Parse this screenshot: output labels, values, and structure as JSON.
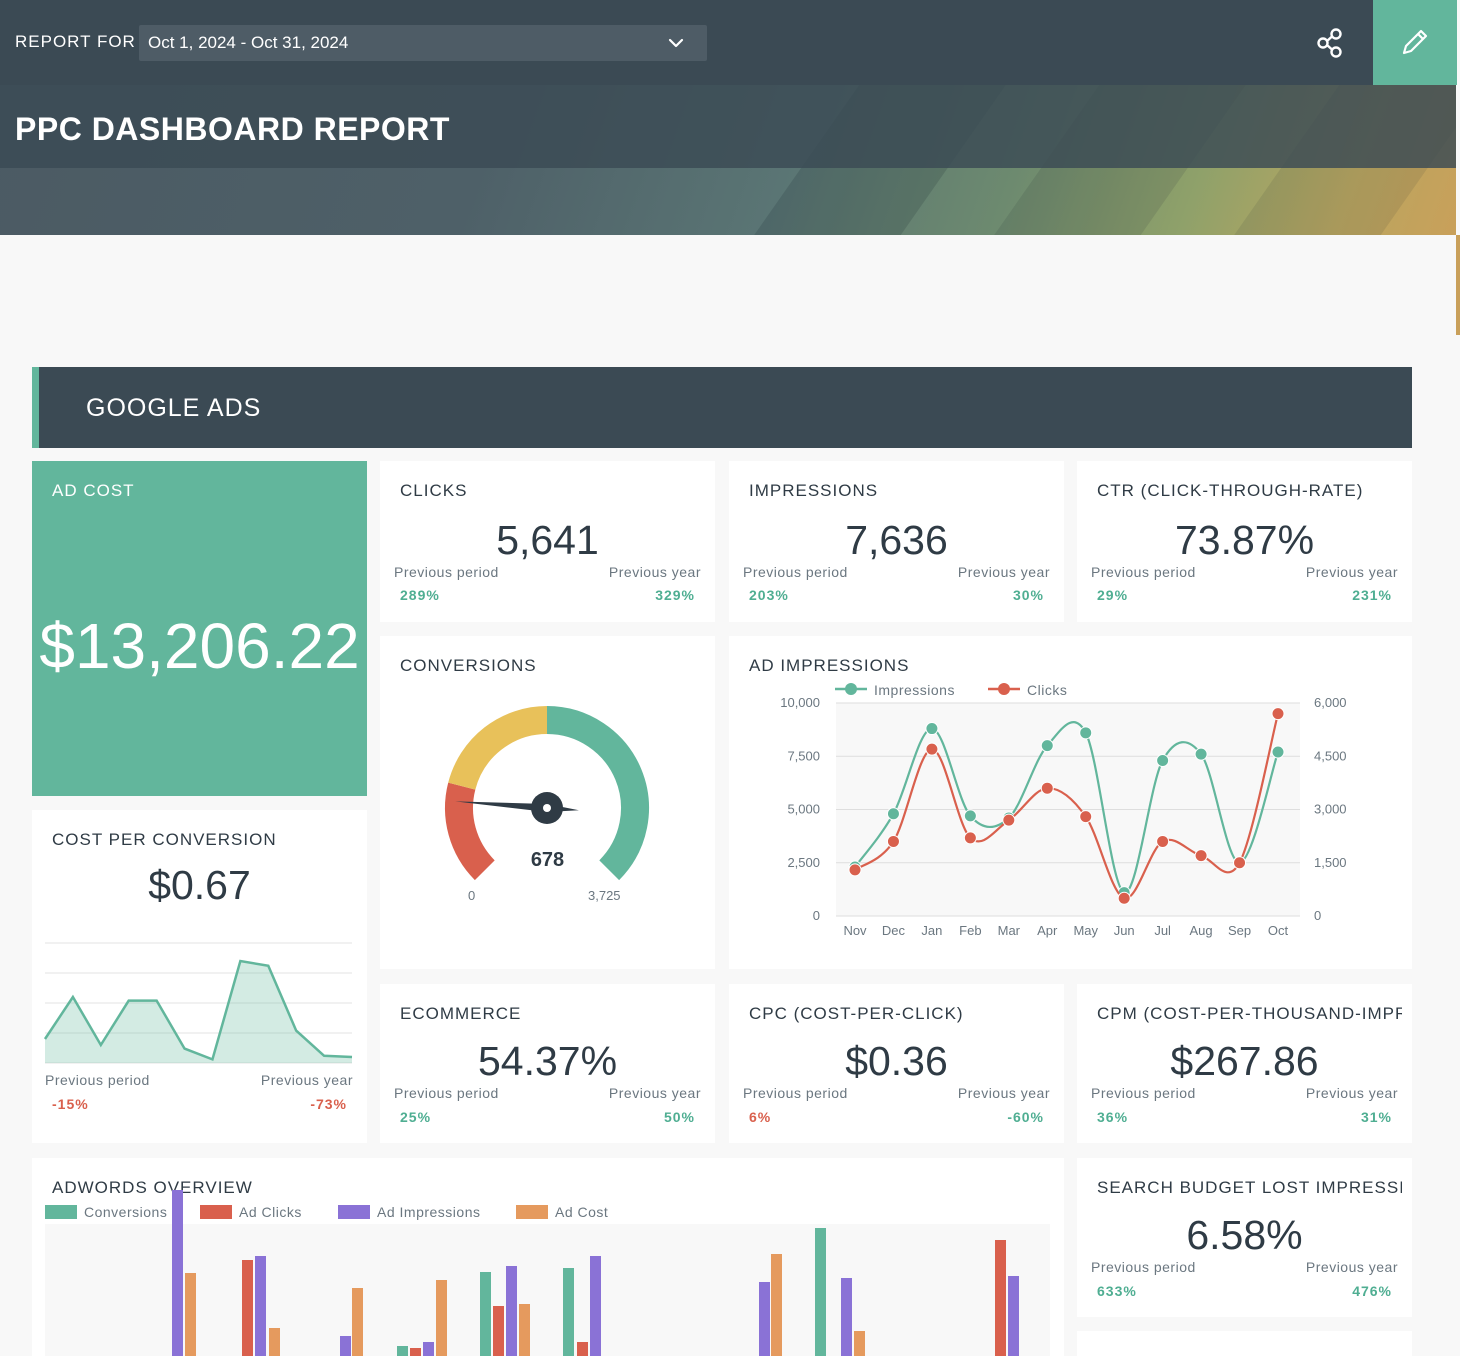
{
  "header": {
    "report_for_label": "REPORT FOR",
    "date_range": "Oct 1, 2024 - Oct 31, 2024",
    "title": "PPC DASHBOARD REPORT",
    "icons": [
      "chevron-down-icon",
      "share-icon",
      "pencil-icon"
    ]
  },
  "section": {
    "title": "GOOGLE ADS"
  },
  "colors": {
    "accent": "#62b69c",
    "dark": "#3b4a54",
    "positive": "#4fae92",
    "negative": "#d9604d",
    "purple": "#8a72d6",
    "orange": "#e59a5e",
    "yellow": "#e8c15a"
  },
  "cards": {
    "ad_cost": {
      "title": "AD COST",
      "value": "$13,206.22"
    },
    "clicks": {
      "title": "CLICKS",
      "value": "5,641",
      "prev_period_label": "Previous period",
      "prev_period": "289%",
      "prev_year_label": "Previous year",
      "prev_year": "329%"
    },
    "impressions": {
      "title": "IMPRESSIONS",
      "value": "7,636",
      "prev_period_label": "Previous period",
      "prev_period": "203%",
      "prev_year_label": "Previous year",
      "prev_year": "30%"
    },
    "ctr": {
      "title": "CTR (CLICK-THROUGH-RATE)",
      "value": "73.87%",
      "prev_period_label": "Previous period",
      "prev_period": "29%",
      "prev_year_label": "Previous year",
      "prev_year": "231%"
    },
    "conversions": {
      "title": "CONVERSIONS",
      "value": "678",
      "min": "0",
      "max": "3,725"
    },
    "cost_per_conversion": {
      "title": "COST PER CONVERSION",
      "value": "$0.67",
      "prev_period_label": "Previous period",
      "prev_period": "-15%",
      "prev_year_label": "Previous year",
      "prev_year": "-73%"
    },
    "ecommerce": {
      "title": "ECOMMERCE",
      "value": "54.37%",
      "prev_period_label": "Previous period",
      "prev_period": "25%",
      "prev_year_label": "Previous year",
      "prev_year": "50%"
    },
    "cpc": {
      "title": "CPC (COST-PER-CLICK)",
      "value": "$0.36",
      "prev_period_label": "Previous period",
      "prev_period": "6%",
      "prev_year_label": "Previous year",
      "prev_year": "-60%"
    },
    "cpm": {
      "title": "CPM (COST-PER-THOUSAND-IMPRI",
      "value": "$267.86",
      "prev_period_label": "Previous period",
      "prev_period": "36%",
      "prev_year_label": "Previous year",
      "prev_year": "31%"
    },
    "search_budget": {
      "title": "SEARCH BUDGET LOST IMPRESSIO",
      "value": "6.58%",
      "prev_period_label": "Previous period",
      "prev_period": "633%",
      "prev_year_label": "Previous year",
      "prev_year": "476%"
    },
    "ad_impressions": {
      "title": "AD IMPRESSIONS"
    },
    "adwords_overview": {
      "title": "ADWORDS OVERVIEW"
    }
  },
  "chart_data": [
    {
      "type": "gauge",
      "name": "conversions",
      "value": 678,
      "min": 0,
      "max": 3725
    },
    {
      "type": "area",
      "name": "cost_per_conversion_sparkline",
      "values": [
        0.2,
        0.55,
        0.15,
        0.52,
        0.52,
        0.12,
        0.03,
        0.85,
        0.81,
        0.27,
        0.06,
        0.05
      ]
    },
    {
      "type": "line",
      "name": "ad_impressions",
      "categories": [
        "Nov",
        "Dec",
        "Jan",
        "Feb",
        "Mar",
        "Apr",
        "May",
        "Jun",
        "Jul",
        "Aug",
        "Sep",
        "Oct"
      ],
      "series": [
        {
          "name": "Impressions",
          "axis": "left",
          "color": "#62b69c",
          "values": [
            2300,
            4800,
            8800,
            4700,
            4600,
            8000,
            8600,
            1100,
            7300,
            7600,
            2500,
            7700
          ]
        },
        {
          "name": "Clicks",
          "axis": "right",
          "color": "#d9604d",
          "values": [
            1300,
            2100,
            4700,
            2200,
            2700,
            3600,
            2800,
            500,
            2100,
            1700,
            1500,
            5700
          ]
        }
      ],
      "y_left": {
        "min": 0,
        "max": 10000,
        "ticks": [
          "0",
          "2,500",
          "5,000",
          "7,500",
          "10,000"
        ]
      },
      "y_right": {
        "min": 0,
        "max": 6000,
        "ticks": [
          "0",
          "1,500",
          "3,000",
          "4,500",
          "6,000"
        ]
      },
      "grid": true,
      "legend": "top-left"
    },
    {
      "type": "bar",
      "name": "adwords_overview",
      "series": [
        {
          "name": "Conversions",
          "color": "#62b69c"
        },
        {
          "name": "Ad Clicks",
          "color": "#d9604d"
        },
        {
          "name": "Ad Impressions",
          "color": "#8a72d6"
        },
        {
          "name": "Ad Cost",
          "color": "#e59a5e"
        }
      ],
      "legend": "top-left"
    }
  ]
}
